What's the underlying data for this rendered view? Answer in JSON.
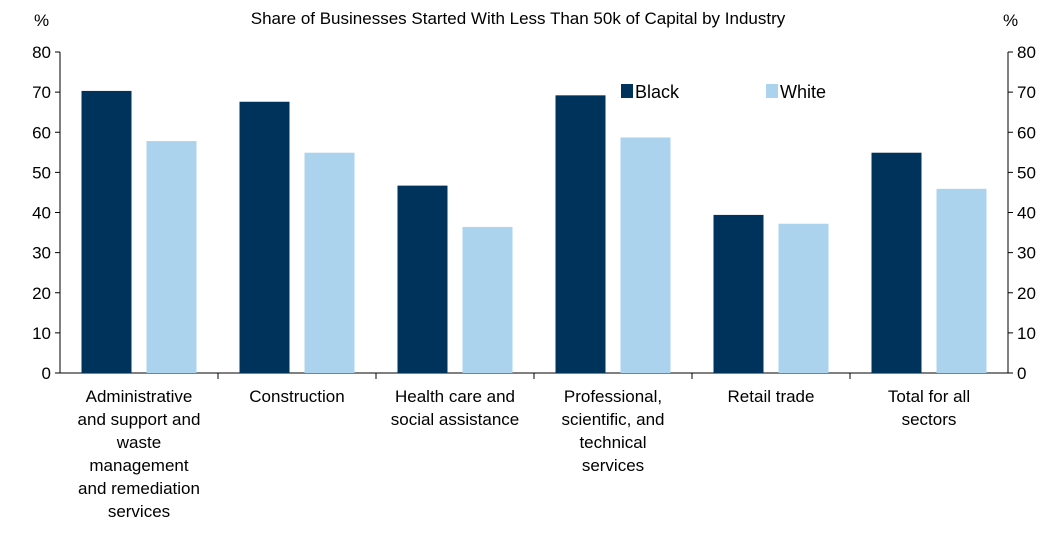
{
  "chart_data": {
    "type": "bar",
    "title": "Share of Businesses Started With Less Than 50k of Capital by Industry",
    "y_unit_left": "%",
    "y_unit_right": "%",
    "ylim": [
      0,
      80
    ],
    "yticks": [
      0,
      10,
      20,
      30,
      40,
      50,
      60,
      70,
      80
    ],
    "ytick_labels": [
      "0",
      "10",
      "20",
      "30",
      "40",
      "50",
      "60",
      "70",
      "80"
    ],
    "categories": [
      "Administrative and support and waste management and remediation services",
      "Construction",
      "Health care and social assistance",
      "Professional, scientific, and technical services",
      "Retail trade",
      "Total for all sectors"
    ],
    "category_lines": [
      [
        "Administrative",
        "and support and",
        "waste",
        "management",
        "and remediation",
        "services"
      ],
      [
        "Construction"
      ],
      [
        "Health care and",
        "social assistance"
      ],
      [
        "Professional,",
        "scientific, and",
        "technical",
        "services"
      ],
      [
        "Retail trade"
      ],
      [
        "Total for all",
        "sectors"
      ]
    ],
    "series": [
      {
        "name": "Black",
        "color": "#00335b",
        "values": [
          70.3,
          67.6,
          46.7,
          69.2,
          39.4,
          54.9
        ]
      },
      {
        "name": "White",
        "color": "#acd3ee",
        "values": [
          57.8,
          54.9,
          36.4,
          58.7,
          37.2,
          45.9
        ]
      }
    ],
    "legend_position": "top-center-right",
    "grid": false
  }
}
